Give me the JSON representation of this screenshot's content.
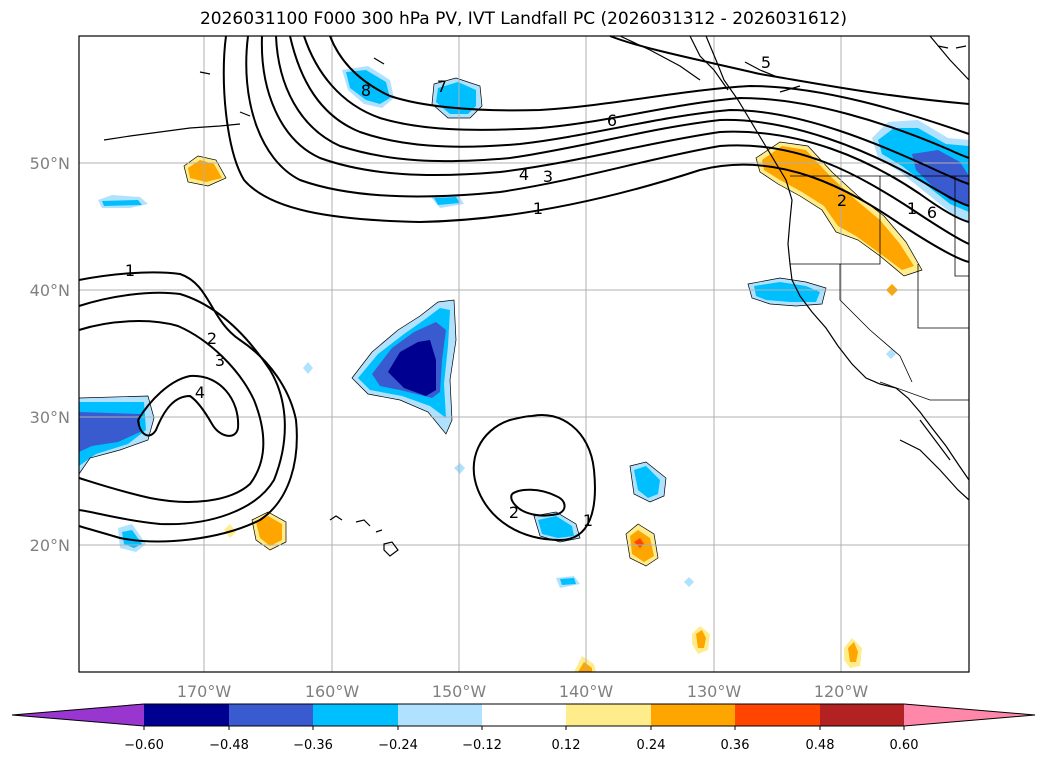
{
  "title": "2026031100 F000 300 hPa PV, IVT Landfall PC (2026031312 - 2026031612)",
  "lat_labels": [
    "50°N",
    "40°N",
    "30°N",
    "20°N"
  ],
  "lon_labels": [
    "170°W",
    "160°W",
    "150°W",
    "140°W",
    "130°W",
    "120°W"
  ],
  "contour_labels": [
    "1",
    "2",
    "3",
    "4",
    "5",
    "6",
    "7",
    "8",
    "1",
    "2",
    "3",
    "4",
    "1",
    "2",
    "1",
    "6"
  ],
  "colorbar": {
    "tick_labels": [
      "−0.60",
      "−0.48",
      "−0.36",
      "−0.24",
      "−0.12",
      "0.12",
      "0.24",
      "0.36",
      "0.48",
      "0.60"
    ],
    "colors": [
      "#9a36d0",
      "#000090",
      "#3a5ad0",
      "#00bfff",
      "#b0e2ff",
      "#ffffff",
      "#ffec8b",
      "#ffa500",
      "#ff4500",
      "#b22222",
      "#ff88aa"
    ],
    "levels": [
      -0.6,
      -0.48,
      -0.36,
      -0.24,
      -0.12,
      0.12,
      0.24,
      0.36,
      0.48,
      0.6
    ]
  },
  "pv_contour_levels": [
    1,
    2,
    3,
    4,
    5,
    6,
    7,
    8
  ]
}
